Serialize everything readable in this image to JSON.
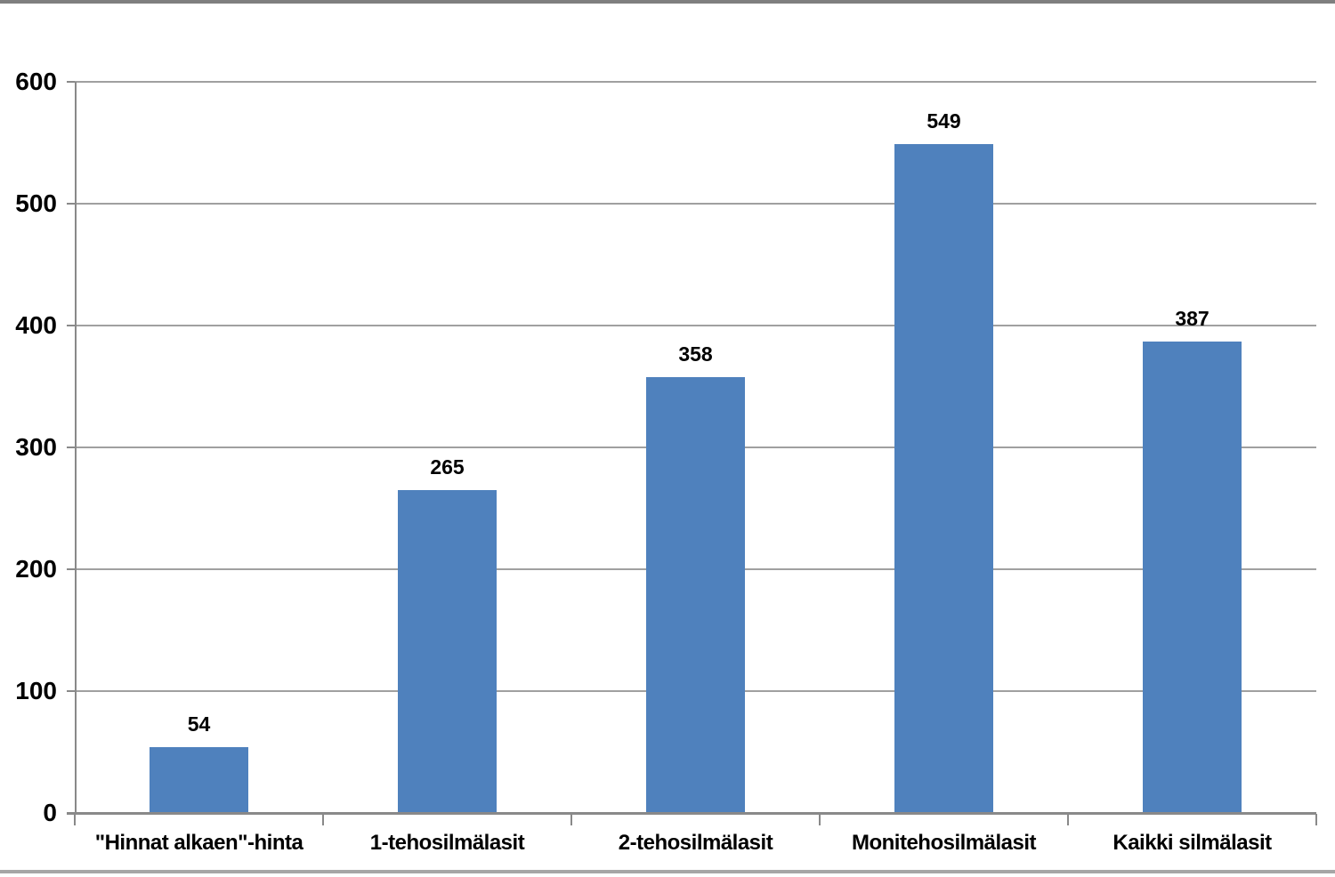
{
  "chart_data": {
    "type": "bar",
    "title": "",
    "categories": [
      "\"Hinnat alkaen\"-hinta",
      "1-tehosilmälasit",
      "2-tehosilmälasit",
      "Monitehosilmälasit",
      "Kaikki silmälasit"
    ],
    "values": [
      54,
      265,
      358,
      549,
      387
    ],
    "value_labels": [
      "54",
      "265",
      "358",
      "549",
      "387"
    ],
    "xlabel": "",
    "ylabel": "",
    "ylim": [
      0,
      600
    ],
    "yticks": [
      0,
      100,
      200,
      300,
      400,
      500,
      600
    ],
    "ytick_labels": [
      "0",
      "100",
      "200",
      "300",
      "400",
      "500",
      "600"
    ],
    "grid": true,
    "legend": "none",
    "colors": {
      "bar": "#4F81BD",
      "gridline": "#A0A0A0",
      "axis": "#898989",
      "text": "#000000",
      "background": "#FFFFFF",
      "frame_top": "#7F7F7F",
      "frame_bottom": "#A6A6A6"
    }
  }
}
